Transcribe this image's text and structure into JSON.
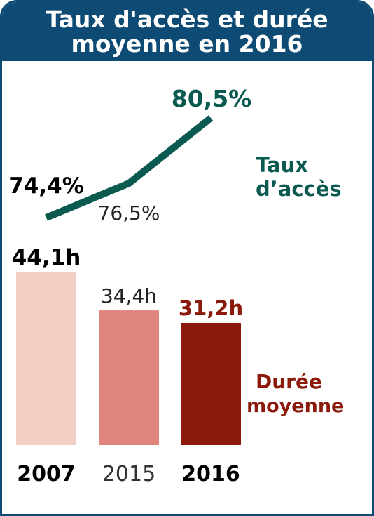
{
  "header": {
    "title_line1": "Taux d'accès et durée",
    "title_line2": "moyenne en 2016"
  },
  "colors": {
    "header_bg": "#0e4b74",
    "line": "#0b5a52",
    "bar_2007": "#f2cfc5",
    "bar_2015": "#e0857b",
    "bar_2016": "#8b1a0c"
  },
  "chart_data": {
    "type": "bar+line",
    "categories": [
      "2007",
      "2015",
      "2016"
    ],
    "series": [
      {
        "name": "Taux d’accès",
        "type": "line",
        "values": [
          74.4,
          76.5,
          80.5
        ],
        "labels": [
          "74,4%",
          "76,5%",
          "80,5%"
        ]
      },
      {
        "name": "Durée moyenne",
        "type": "bar",
        "values": [
          44.1,
          34.4,
          31.2
        ],
        "labels": [
          "44,1h",
          "34,4h",
          "31,2h"
        ]
      }
    ],
    "legend": {
      "line_line1": "Taux",
      "line_line2": "d’accès",
      "bar_line1": "Durée",
      "bar_line2": "moyenne"
    }
  }
}
